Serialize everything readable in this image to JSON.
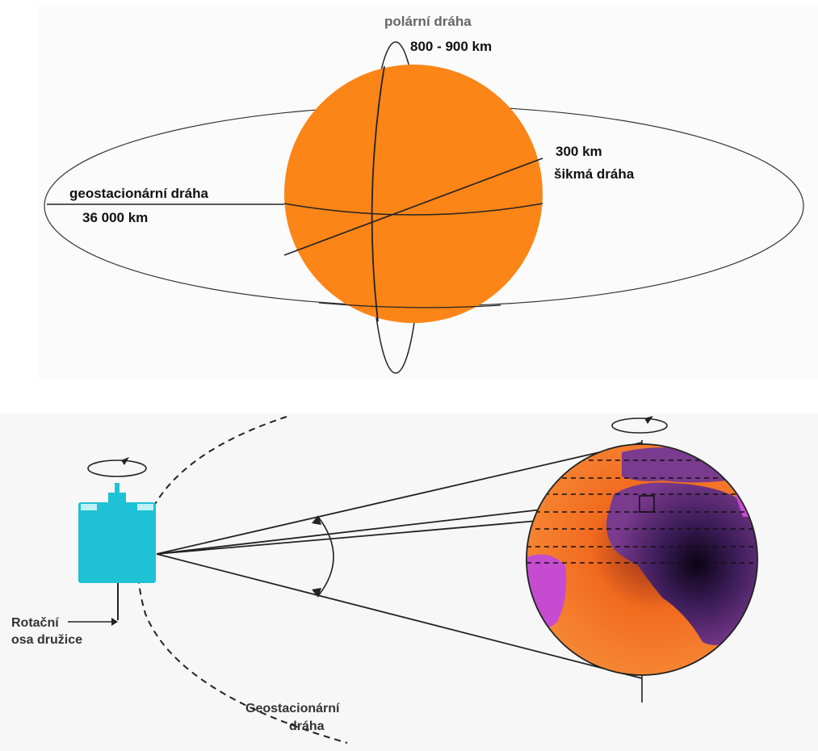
{
  "orbits": {
    "polar": {
      "name": "polární dráha",
      "altitude": "800 - 900 km"
    },
    "inclined": {
      "altitude": "300 km",
      "name": "šikmá dráha"
    },
    "geostationary": {
      "name": "geostacionární dráha",
      "altitude": "36 000 km"
    }
  },
  "scan": {
    "rotation_axis_label_line1": "Rotační",
    "rotation_axis_label_line2": "osa družice",
    "geo_orbit_label_line1": "Geostacionární",
    "geo_orbit_label_line2": "dráha"
  },
  "colors": {
    "earth_top": "#fb8517",
    "satellite": "#1fc1d4",
    "earth_bottom_ocean": "#f26a1f",
    "earth_bottom_land": "#3a1b56",
    "earth_bottom_edge": "#c54bd1",
    "line": "#1b1b1b"
  },
  "icons": [
    "rotation-arrow-icon",
    "satellite-icon"
  ]
}
